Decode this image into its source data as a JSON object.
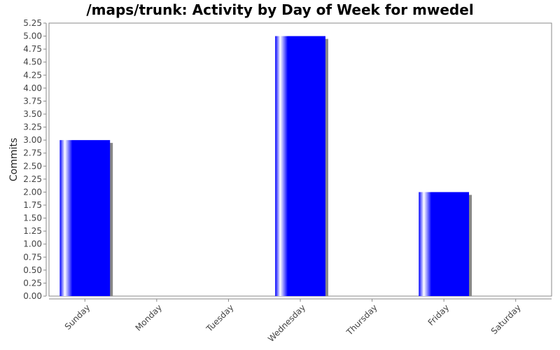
{
  "chart_data": {
    "type": "bar",
    "title": "/maps/trunk: Activity by Day of Week for mwedel",
    "xlabel": "",
    "ylabel": "Commits",
    "categories": [
      "Sunday",
      "Monday",
      "Tuesday",
      "Wednesday",
      "Thursday",
      "Friday",
      "Saturday"
    ],
    "values": [
      3,
      0,
      0,
      5,
      0,
      2,
      0
    ],
    "ylim": [
      0,
      5.25
    ],
    "ytick_step": 0.25,
    "grid": false,
    "legend": "none",
    "bar_color": "#0000ff",
    "shadow_color": "#888888"
  }
}
